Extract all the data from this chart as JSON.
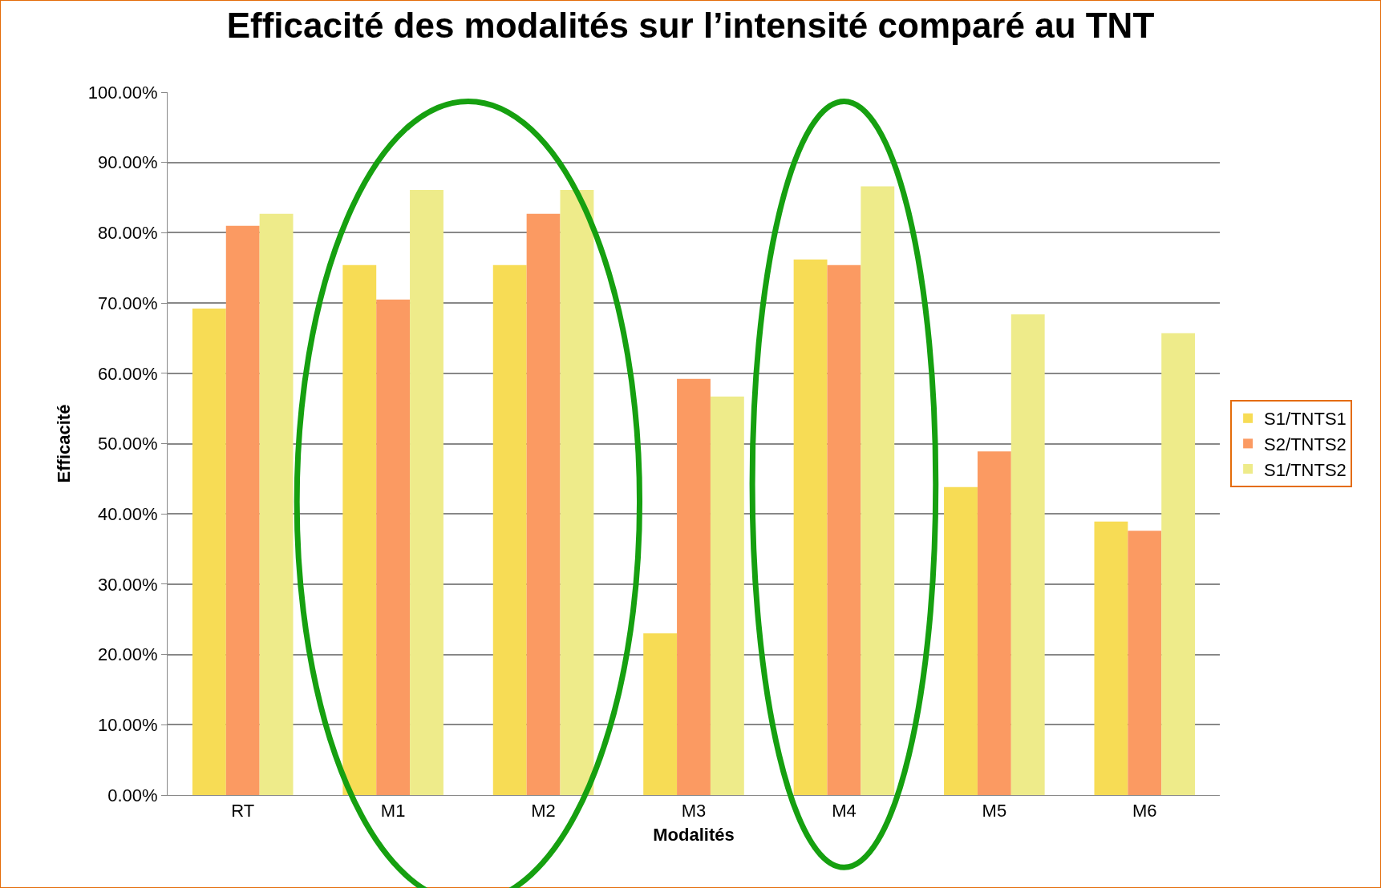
{
  "chart_data": {
    "type": "bar",
    "title": "Efficacité des modalités sur l’intensité comparé au TNT",
    "xlabel": "Modalités",
    "ylabel": "Efficacité",
    "categories": [
      "RT",
      "M1",
      "M2",
      "M3",
      "M4",
      "M5",
      "M6"
    ],
    "series": [
      {
        "name": "S1/TNTS1",
        "color": "#f7dc55",
        "values": [
          69.2,
          75.4,
          75.4,
          23.0,
          76.2,
          43.8,
          38.9
        ]
      },
      {
        "name": "S2/TNTS2",
        "color": "#fb9a62",
        "values": [
          81.0,
          70.5,
          82.7,
          59.2,
          75.4,
          48.9,
          37.6
        ]
      },
      {
        "name": "S1/TNTS2",
        "color": "#eeeb8a",
        "values": [
          82.7,
          86.1,
          86.1,
          56.7,
          86.6,
          68.4,
          65.7
        ]
      }
    ],
    "ylim": [
      0,
      100
    ],
    "yticks": [
      {
        "value": 0,
        "label": "0.00%"
      },
      {
        "value": 10,
        "label": "10.00%"
      },
      {
        "value": 20,
        "label": "20.00%"
      },
      {
        "value": 30,
        "label": "30.00%"
      },
      {
        "value": 40,
        "label": "40.00%"
      },
      {
        "value": 50,
        "label": "50.00%"
      },
      {
        "value": 60,
        "label": "60.00%"
      },
      {
        "value": 70,
        "label": "70.00%"
      },
      {
        "value": 80,
        "label": "80.00%"
      },
      {
        "value": 90,
        "label": "90.00%"
      },
      {
        "value": 100,
        "label": "100.00%"
      }
    ],
    "grid": "y",
    "legend": "right"
  }
}
